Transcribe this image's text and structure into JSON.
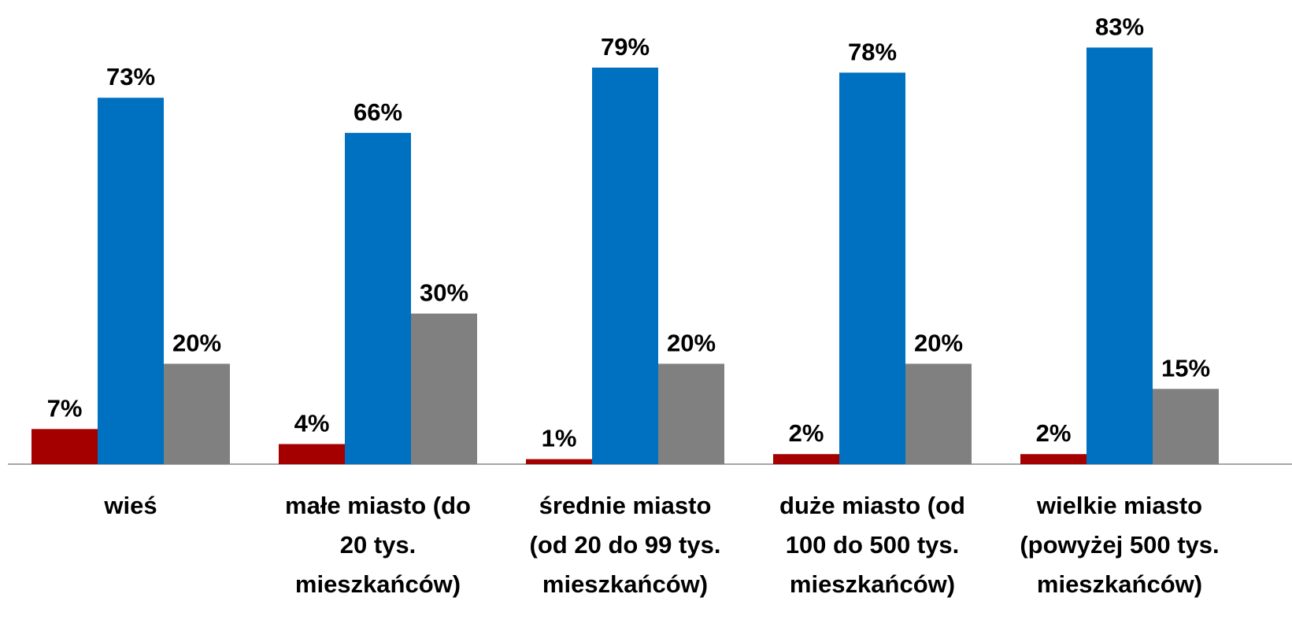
{
  "chart_data": {
    "type": "bar",
    "categories": [
      "wieś",
      "małe miasto (do\n20 tys.\nmieszkańców)",
      "średnie miasto\n(od 20 do 99 tys.\nmieszkańców)",
      "duże miasto (od\n100 do 500 tys.\nmieszkańców)",
      "wielkie miasto\n(powyżej 500 tys.\nmieszkańców)"
    ],
    "series": [
      {
        "color": "#a50000",
        "values": [
          7,
          4,
          1,
          2,
          2
        ],
        "value_labels": [
          "7%",
          "4%",
          "1%",
          "2%",
          "2%"
        ]
      },
      {
        "color": "#0070c0",
        "values": [
          73,
          66,
          79,
          78,
          83
        ],
        "value_labels": [
          "73%",
          "66%",
          "79%",
          "78%",
          "83%"
        ]
      },
      {
        "color": "#808080",
        "values": [
          20,
          30,
          20,
          20,
          15
        ],
        "value_labels": [
          "20%",
          "30%",
          "20%",
          "20%",
          "15%"
        ]
      }
    ],
    "ylim": [
      0,
      92
    ]
  }
}
